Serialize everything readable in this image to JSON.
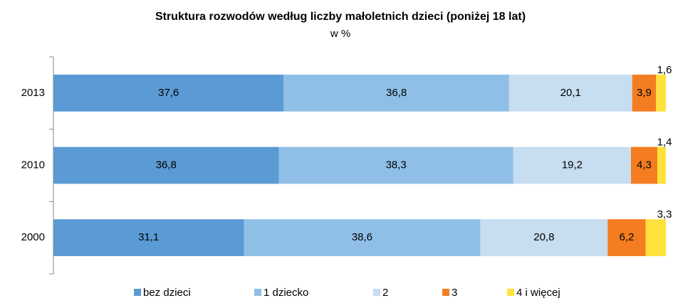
{
  "chart_data": {
    "type": "stacked-barh",
    "title": "Struktura rozwodów według liczby małoletnich dzieci (poniżej 18 lat)",
    "subtitle": "w %",
    "categories": [
      "2013",
      "2010",
      "2000"
    ],
    "xlim": [
      0,
      100
    ],
    "series": [
      {
        "name": "bez dzieci",
        "color": "#5b9bd5",
        "values": [
          37.6,
          36.8,
          31.1
        ],
        "value_labels": [
          "37,6",
          "36,8",
          "31,1"
        ]
      },
      {
        "name": "1 dziecko",
        "color": "#8fbfe6",
        "values": [
          36.8,
          38.3,
          38.6
        ],
        "value_labels": [
          "36,8",
          "38,3",
          "38,6"
        ]
      },
      {
        "name": "2",
        "color": "#c7ddf0",
        "values": [
          20.1,
          19.2,
          20.8
        ],
        "value_labels": [
          "20,1",
          "19,2",
          "20,8"
        ]
      },
      {
        "name": "3",
        "color": "#f47d21",
        "values": [
          3.9,
          4.3,
          6.2
        ],
        "value_labels": [
          "3,9",
          "4,3",
          "6,2"
        ]
      },
      {
        "name": "4 i więcej",
        "color": "#ffe13b",
        "values": [
          1.6,
          1.4,
          3.3
        ],
        "value_labels": [
          "1,6",
          "1,4",
          "3,3"
        ]
      }
    ],
    "legend": "bottom"
  }
}
